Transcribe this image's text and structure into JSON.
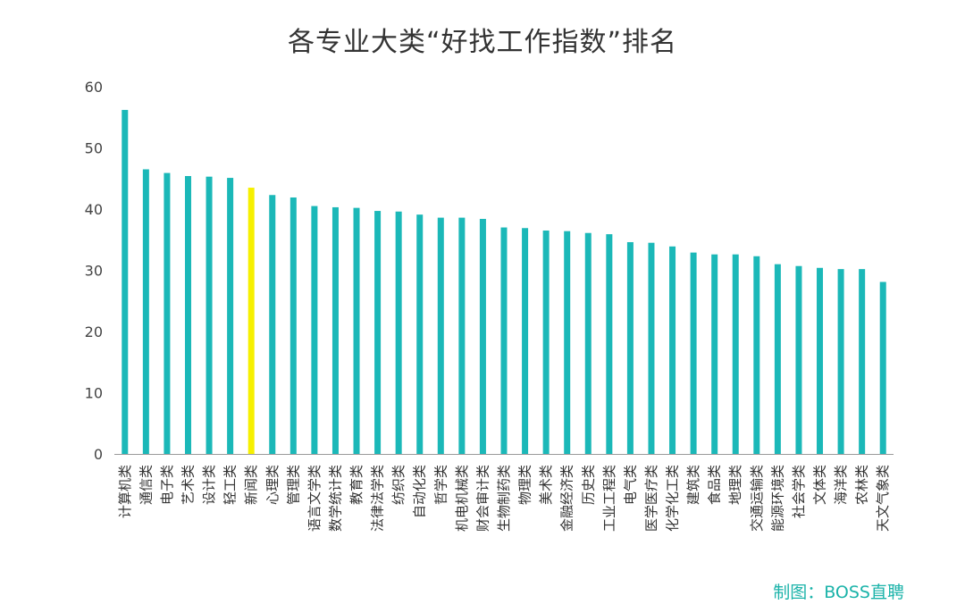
{
  "chart_data": {
    "type": "bar",
    "title": "各专业大类“好找工作指数”排名",
    "xlabel": "",
    "ylabel": "",
    "ylim": [
      0,
      60
    ],
    "yticks": [
      0,
      10,
      20,
      30,
      40,
      50,
      60
    ],
    "grid": false,
    "legend": "none",
    "categories": [
      "计算机类",
      "通信类",
      "电子类",
      "艺术类",
      "设计类",
      "轻工类",
      "新闻类",
      "心理类",
      "管理类",
      "语言文学类",
      "数学统计类",
      "教育类",
      "法律法学类",
      "纺织类",
      "自动化类",
      "哲学类",
      "机电机械类",
      "财会审计类",
      "生物制药类",
      "物理类",
      "美术类",
      "金融经济类",
      "历史类",
      "工业工程类",
      "电气类",
      "医学医疗类",
      "化学化工类",
      "建筑类",
      "食品类",
      "地理类",
      "交通运输类",
      "能源环境类",
      "社会学类",
      "文体类",
      "海洋类",
      "农林类",
      "天文气象类"
    ],
    "values": [
      56.2,
      46.5,
      45.9,
      45.4,
      45.3,
      45.1,
      43.5,
      42.3,
      41.9,
      40.5,
      40.3,
      40.2,
      39.7,
      39.6,
      39.1,
      38.6,
      38.6,
      38.4,
      37.0,
      36.9,
      36.5,
      36.4,
      36.1,
      35.9,
      34.6,
      34.5,
      33.9,
      32.9,
      32.6,
      32.6,
      32.3,
      31.0,
      30.7,
      30.4,
      30.2,
      30.2,
      28.1
    ],
    "colors": {
      "bar": "#1bb8b8",
      "highlight": "#f6f000",
      "highlight_category": "新闻类",
      "axis": "#9a9a9a"
    }
  },
  "source": "制图：BOSS直聘"
}
